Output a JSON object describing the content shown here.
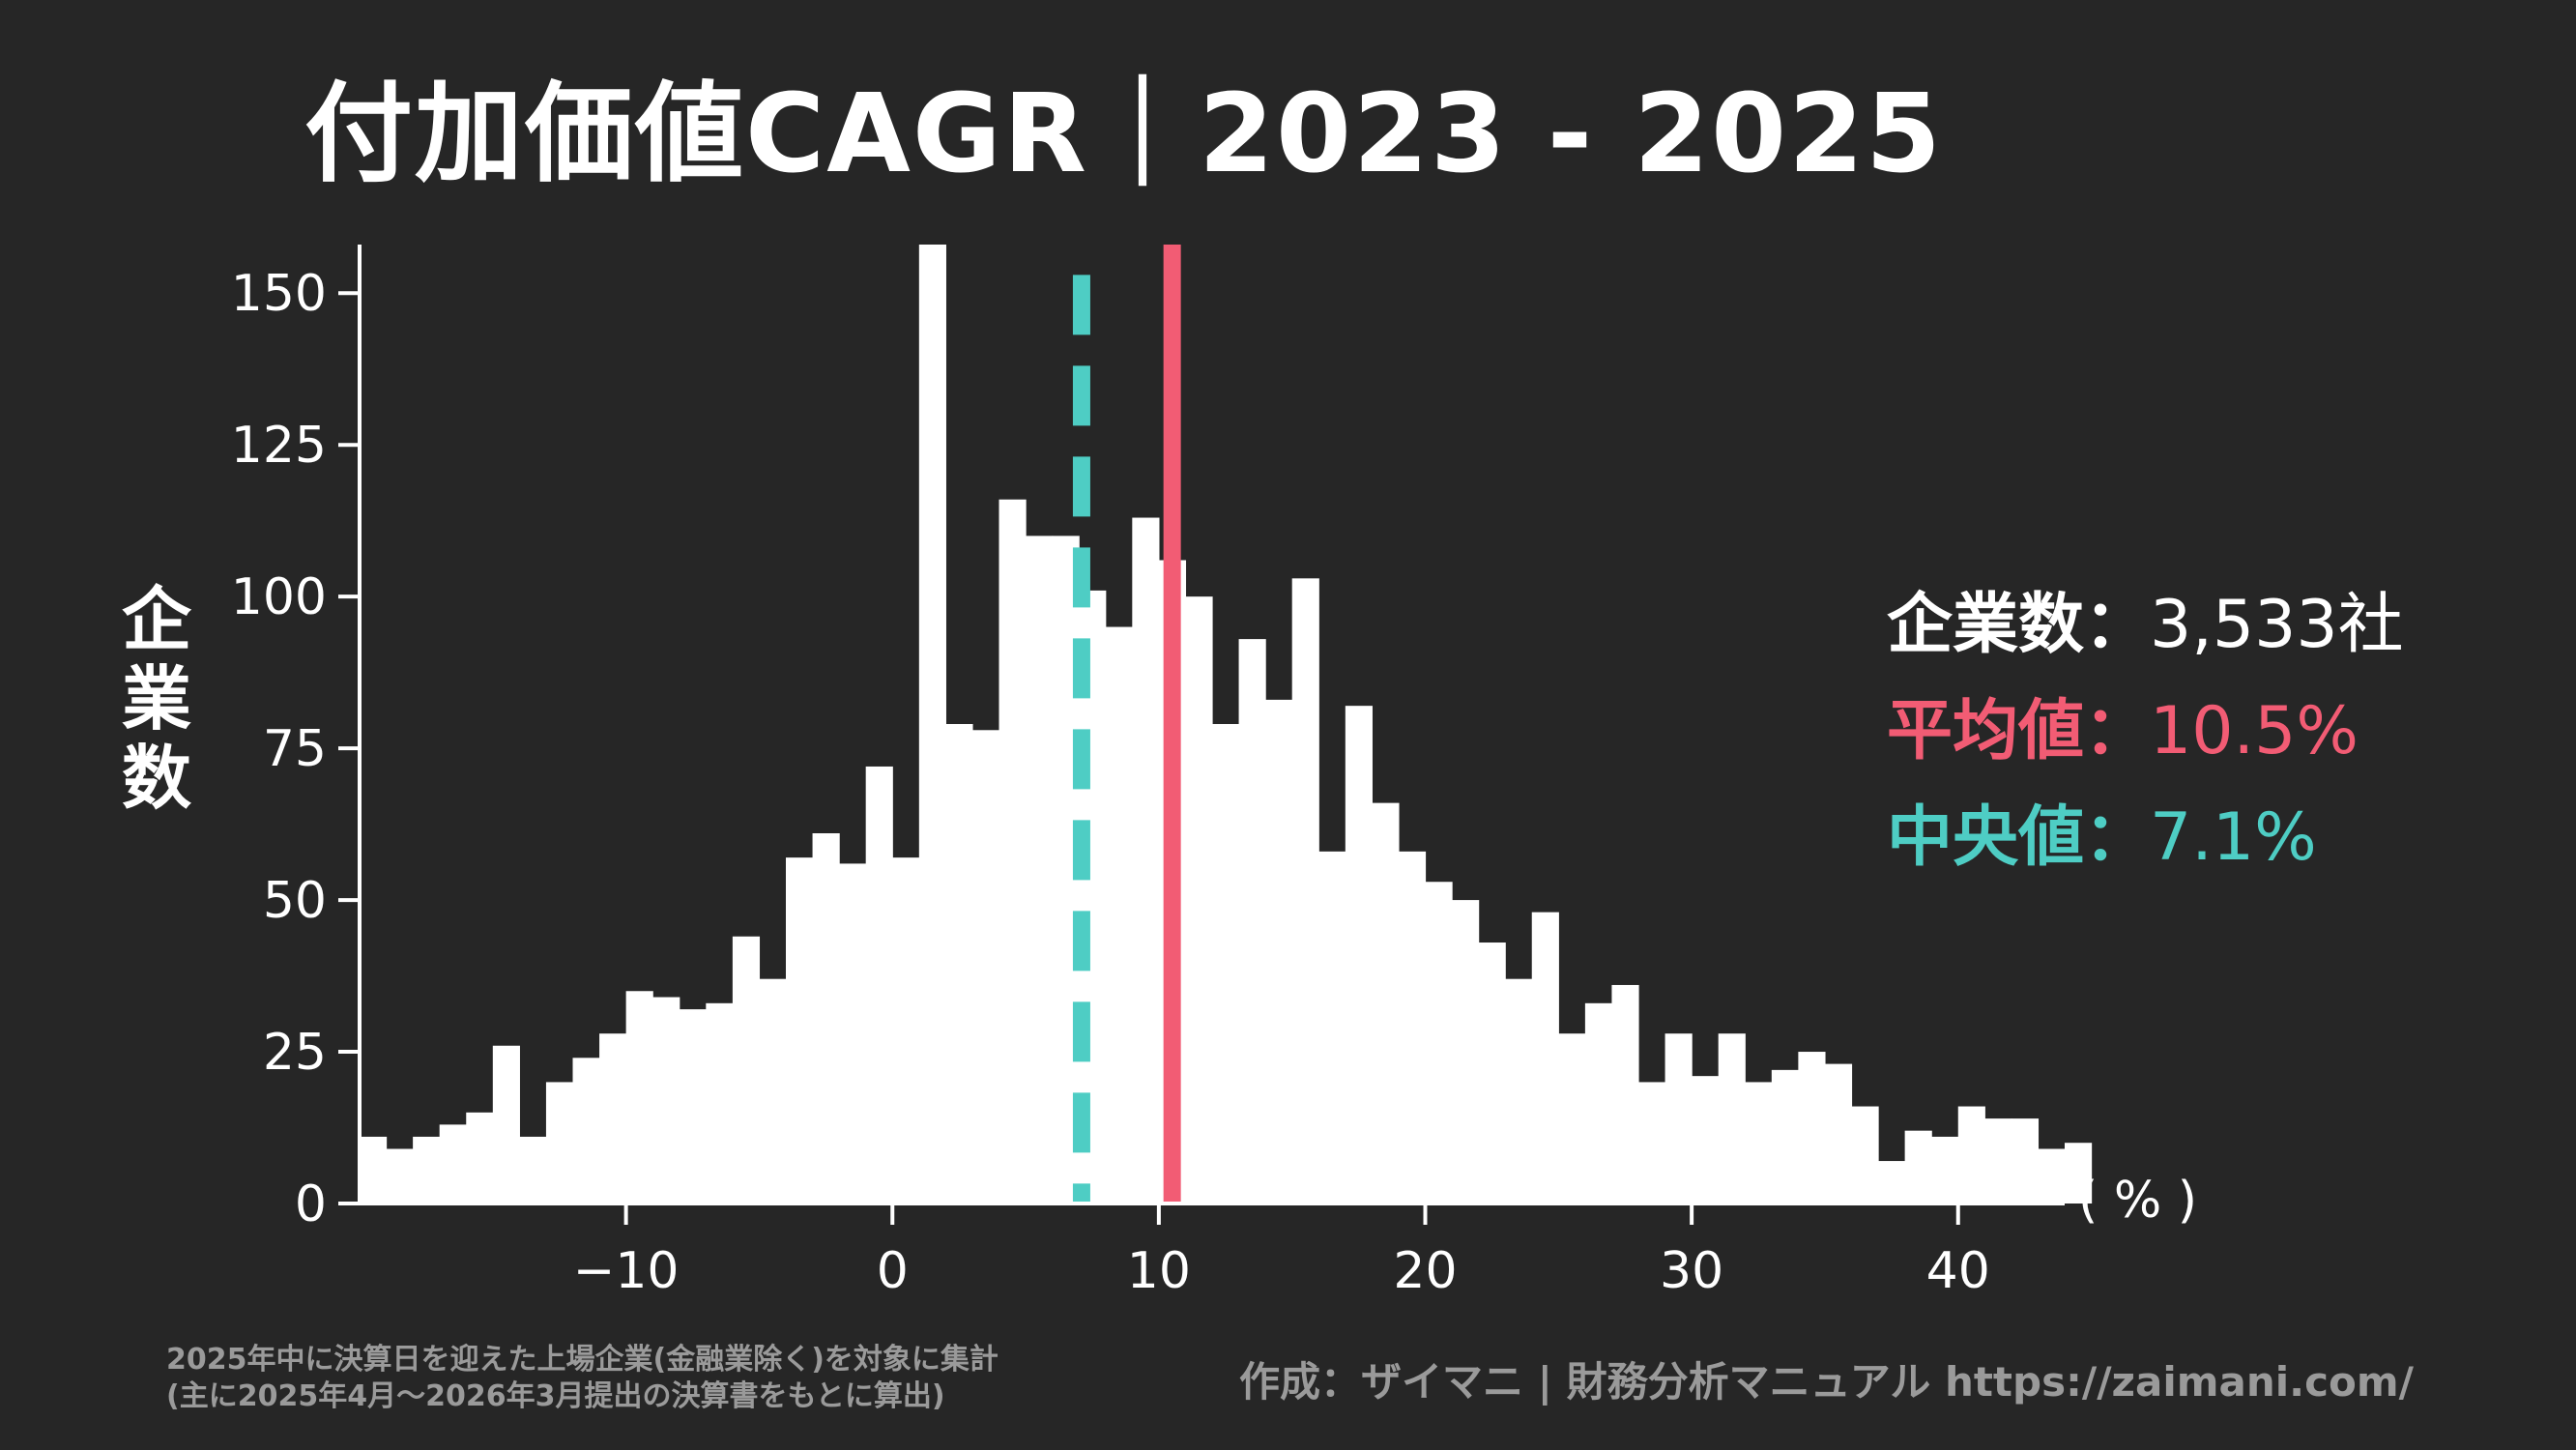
{
  "title": "付加価値CAGR｜2023 - 2025",
  "y_axis_label_chars": [
    "企",
    "業",
    "数"
  ],
  "x_unit_label": "( % )",
  "stats": {
    "count_label": "企業数：",
    "count_value": "3,533社",
    "mean_label": "平均値：",
    "mean_value": "10.5%",
    "median_label": "中央値：",
    "median_value": "7.1%"
  },
  "footnote": {
    "line1": "2025年中に決算日を迎えた上場企業(金融業除く)を対象に集計",
    "line2": "(主に2025年4月〜2026年3月提出の決算書をもとに算出)"
  },
  "credit": "作成：ザイマニ | 財務分析マニュアル https://zaimani.com/",
  "colors": {
    "background": "#262626",
    "bars": "#ffffff",
    "mean": "#f25c74",
    "median": "#4ecdc4",
    "count_text": "#ffffff",
    "footnote": "#9a9a9a"
  },
  "chart_data": {
    "type": "bar",
    "subtype": "histogram",
    "bin_width": 1,
    "x_start": -20,
    "xlim": [
      -20,
      44
    ],
    "ylim": [
      0,
      158
    ],
    "x_ticks": [
      -10,
      0,
      10,
      20,
      30,
      40
    ],
    "x_tick_labels": [
      "−10",
      "0",
      "10",
      "20",
      "30",
      "40"
    ],
    "y_ticks": [
      0,
      25,
      50,
      75,
      100,
      125,
      150
    ],
    "y_tick_labels": [
      "0",
      "25",
      "50",
      "75",
      "100",
      "125",
      "150"
    ],
    "values": [
      11,
      9,
      11,
      13,
      15,
      26,
      11,
      20,
      24,
      28,
      35,
      34,
      32,
      33,
      44,
      37,
      57,
      61,
      56,
      72,
      57,
      158,
      79,
      78,
      116,
      110,
      110,
      101,
      95,
      113,
      106,
      100,
      79,
      93,
      83,
      103,
      58,
      82,
      66,
      58,
      53,
      50,
      43,
      37,
      48,
      28,
      33,
      36,
      20,
      28,
      21,
      28,
      20,
      22,
      25,
      23,
      16,
      7,
      12,
      11,
      16,
      14,
      14,
      9,
      10
    ],
    "mean": 10.5,
    "median": 7.1,
    "grid": false,
    "legend": "none"
  }
}
